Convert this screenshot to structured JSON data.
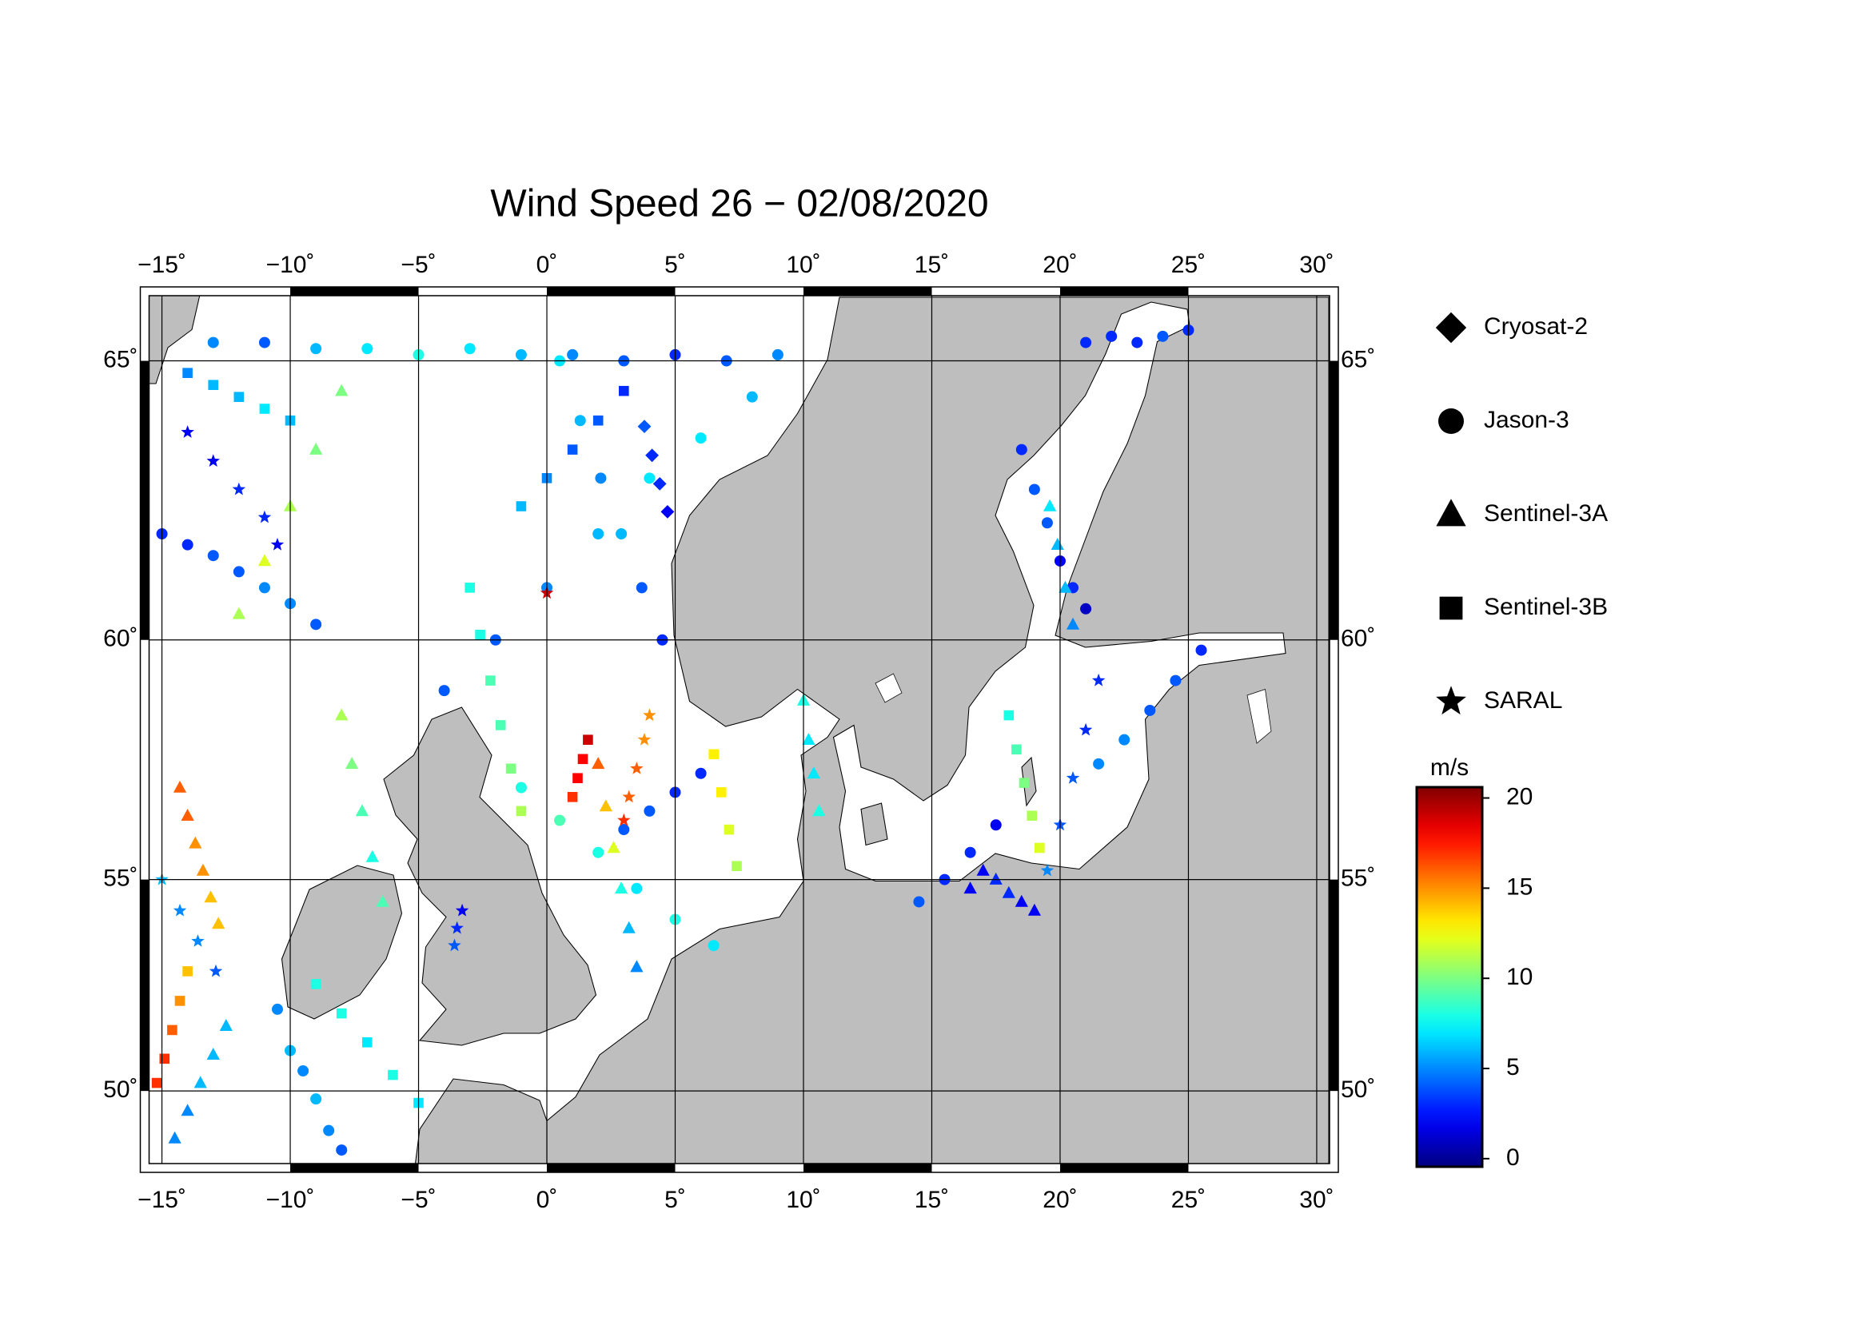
{
  "chart_data": {
    "type": "scatter",
    "title": "Wind Speed 26 − 02/08/2020",
    "projection": "mercator",
    "xlim": [
      -15.5,
      30.5
    ],
    "ylim": [
      48.15,
      66.05
    ],
    "xticks": [
      {
        "value": -15,
        "label": "−15˚"
      },
      {
        "value": -10,
        "label": "−10˚"
      },
      {
        "value": -5,
        "label": "−5˚"
      },
      {
        "value": 0,
        "label": "0˚"
      },
      {
        "value": 5,
        "label": "5˚"
      },
      {
        "value": 10,
        "label": "10˚"
      },
      {
        "value": 15,
        "label": "15˚"
      },
      {
        "value": 20,
        "label": "20˚"
      },
      {
        "value": 25,
        "label": "25˚"
      },
      {
        "value": 30,
        "label": "30˚"
      }
    ],
    "yticks": [
      {
        "value": 50,
        "label": "50˚"
      },
      {
        "value": 55,
        "label": "55˚"
      },
      {
        "value": 60,
        "label": "60˚"
      },
      {
        "value": 65,
        "label": "65˚"
      }
    ],
    "grid": true,
    "colormap": "jet",
    "colorbar": {
      "label": "m/s",
      "lim": [
        -0.45,
        20.6
      ],
      "ticks": [
        0,
        5,
        10,
        15,
        20
      ]
    },
    "series": [
      {
        "name": "Cryosat-2",
        "marker": "diamond",
        "x": [
          3.8,
          4.1,
          4.4,
          4.7
        ],
        "y": [
          63.9,
          63.4,
          62.9,
          62.4
        ],
        "values": [
          4,
          3,
          3,
          2
        ]
      },
      {
        "name": "Jason-3",
        "marker": "circle",
        "x": [
          -13,
          -11,
          -9,
          -7,
          -5,
          -3,
          -1,
          1,
          3,
          5,
          7,
          9,
          -4,
          -2,
          0,
          2,
          4,
          6,
          8,
          0.5,
          1.3,
          2.1,
          2.9,
          3.7,
          4.5,
          -1,
          0.5,
          2,
          3.5,
          5,
          6.5,
          -15,
          -14,
          -13,
          -12,
          -11,
          -10,
          -9,
          -10.5,
          -10,
          -9.5,
          -9,
          -8.5,
          -8,
          21,
          22,
          23,
          24,
          25,
          18.5,
          19,
          19.5,
          20,
          20.5,
          21,
          25.5,
          24.5,
          23.5,
          22.5,
          21.5,
          6,
          5,
          4,
          3,
          14.5,
          15.5,
          16.5,
          17.5
        ],
        "y": [
          65.3,
          65.3,
          65.2,
          65.2,
          65.1,
          65.2,
          65.1,
          65.1,
          65.0,
          65.1,
          65.0,
          65.1,
          59.0,
          60.0,
          61.0,
          62.0,
          63.0,
          63.7,
          64.4,
          65,
          64,
          63,
          62,
          61,
          60,
          57,
          56.3,
          55.6,
          54.8,
          54.1,
          53.5,
          62,
          61.8,
          61.6,
          61.3,
          61,
          60.7,
          60.3,
          52,
          51,
          50.5,
          49.8,
          49,
          48.5,
          65.3,
          65.4,
          65.3,
          65.4,
          65.5,
          63.5,
          62.8,
          62.2,
          61.5,
          61,
          60.6,
          59.8,
          59.2,
          58.6,
          58,
          57.5,
          57.3,
          56.9,
          56.5,
          56.1,
          54.5,
          55,
          55.6,
          56.2
        ],
        "values": [
          5,
          4,
          6,
          7,
          8,
          7,
          6,
          5,
          4,
          3,
          4,
          5,
          4,
          4,
          5,
          6,
          7,
          7,
          6,
          7,
          6,
          5,
          6,
          4,
          3,
          8,
          9,
          8,
          7,
          8,
          7,
          3,
          3,
          4,
          4,
          5,
          5,
          4,
          5,
          6,
          5,
          6,
          5,
          4,
          3,
          3,
          3,
          4,
          3,
          3,
          4,
          4,
          2,
          3,
          1,
          3,
          4,
          4,
          5,
          5,
          3,
          3,
          4,
          4,
          4,
          3,
          3,
          2
        ]
      },
      {
        "name": "Sentinel-3A",
        "marker": "triangle",
        "x": [
          -14.3,
          -14,
          -13.7,
          -13.4,
          -13.1,
          -12.8,
          -14.5,
          -14,
          -13.5,
          -13,
          -12.5,
          2,
          2.3,
          2.6,
          2.9,
          3.2,
          3.5,
          -12,
          -11,
          -10,
          -9,
          -8,
          16.5,
          17,
          17.5,
          18,
          18.5,
          19,
          10,
          10.2,
          10.4,
          10.6,
          -8,
          -7.6,
          -7.2,
          -6.8,
          -6.4,
          19.6,
          19.9,
          20.2,
          20.5
        ],
        "y": [
          57,
          56.4,
          55.8,
          55.2,
          54.6,
          54,
          48.8,
          49.5,
          50.2,
          50.9,
          51.6,
          57.5,
          56.6,
          55.7,
          54.8,
          53.9,
          53,
          60.5,
          61.5,
          62.5,
          63.5,
          64.5,
          54.8,
          55.2,
          55,
          54.7,
          54.5,
          54.3,
          58.8,
          58,
          57.3,
          56.5,
          58.5,
          57.5,
          56.5,
          55.5,
          54.5,
          62.5,
          61.8,
          61,
          60.3
        ],
        "values": [
          16,
          16,
          15,
          15,
          14,
          14,
          5,
          5,
          6,
          6,
          6,
          16,
          14,
          12,
          8,
          6,
          5,
          11,
          12,
          11,
          10,
          10,
          2,
          2,
          3,
          3,
          2,
          2,
          8,
          7,
          7,
          8,
          11,
          10,
          9,
          8,
          9,
          7,
          6,
          6,
          5
        ]
      },
      {
        "name": "Sentinel-3B",
        "marker": "square",
        "x": [
          -15.2,
          -14.9,
          -14.6,
          -14.3,
          -14,
          -3,
          -2.6,
          -2.2,
          -1.8,
          -1.4,
          -1,
          1.6,
          1.4,
          1.2,
          1.0,
          6.5,
          6.8,
          7.1,
          7.4,
          -14,
          -13,
          -12,
          -11,
          -10,
          18,
          18.3,
          18.6,
          18.9,
          19.2,
          -9,
          -8,
          -7,
          -6,
          -5,
          3,
          2,
          1,
          0,
          -1
        ],
        "y": [
          50.2,
          50.8,
          51.5,
          52.2,
          52.9,
          61,
          60.1,
          59.2,
          58.3,
          57.4,
          56.5,
          58,
          57.6,
          57.2,
          56.8,
          57.7,
          56.9,
          56.1,
          55.3,
          64.8,
          64.6,
          64.4,
          64.2,
          64,
          58.5,
          57.8,
          57.1,
          56.4,
          55.7,
          52.6,
          51.9,
          51.2,
          50.4,
          49.7,
          64.5,
          64,
          63.5,
          63,
          62.5
        ],
        "values": [
          17,
          17,
          16,
          15,
          14,
          8,
          8,
          9,
          9,
          10,
          11,
          19,
          18,
          18,
          17,
          13,
          13,
          12,
          11,
          5,
          6,
          6,
          7,
          6,
          8,
          9,
          10,
          11,
          12,
          8,
          8,
          7,
          8,
          7,
          3,
          4,
          4,
          5,
          6
        ]
      },
      {
        "name": "SARAL",
        "marker": "star",
        "x": [
          -14,
          -13,
          -12,
          -11,
          -10.5,
          0,
          4,
          3.8,
          3.5,
          3.2,
          3.0,
          -15,
          -14.3,
          -13.6,
          -12.9,
          21.5,
          21,
          20.5,
          20,
          19.5,
          -3.3,
          -3.5,
          -3.6
        ],
        "y": [
          63.8,
          63.3,
          62.8,
          62.3,
          61.8,
          60.9,
          58.5,
          58,
          57.4,
          56.8,
          56.3,
          55,
          54.3,
          53.6,
          52.9,
          59.2,
          58.2,
          57.2,
          56.2,
          55.2,
          54.3,
          53.9,
          53.5
        ],
        "values": [
          2,
          2,
          3,
          3,
          2,
          19,
          15,
          15,
          16,
          16,
          17,
          6,
          5,
          5,
          4,
          3,
          3,
          4,
          4,
          5,
          2,
          3,
          4
        ]
      }
    ]
  }
}
